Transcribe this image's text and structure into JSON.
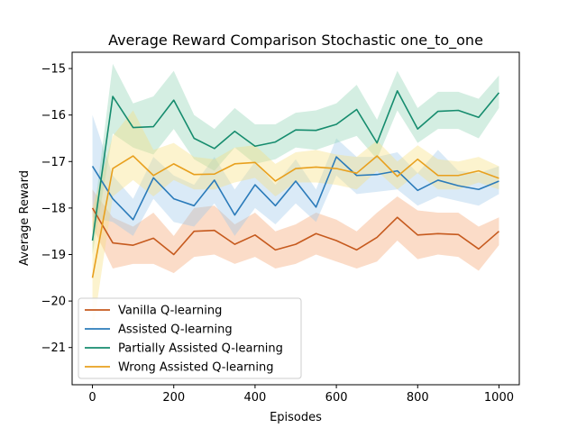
{
  "chart_data": {
    "type": "line",
    "title": "Average Reward Comparison Stochastic one_to_one",
    "xlabel": "Episodes",
    "ylabel": "Average Reward",
    "xlim": [
      -50,
      1050
    ],
    "ylim": [
      -21.8,
      -14.65
    ],
    "xticks": [
      0,
      200,
      400,
      600,
      800,
      1000
    ],
    "yticks": [
      -21,
      -20,
      -19,
      -18,
      -17,
      -16,
      -15
    ],
    "grid": false,
    "legend_position": "lower-left",
    "x": [
      0,
      50,
      100,
      150,
      200,
      250,
      300,
      350,
      400,
      450,
      500,
      550,
      600,
      650,
      700,
      750,
      800,
      850,
      900,
      950,
      1000
    ],
    "series": [
      {
        "name": "Vanilla Q-learning",
        "color": "#c65a1e",
        "band_color": "#f5a26f",
        "values": [
          -18.0,
          -18.75,
          -18.8,
          -18.65,
          -19.0,
          -18.5,
          -18.48,
          -18.78,
          -18.58,
          -18.9,
          -18.78,
          -18.55,
          -18.7,
          -18.9,
          -18.63,
          -18.2,
          -18.58,
          -18.55,
          -18.57,
          -18.88,
          -18.5
        ],
        "lower": [
          -18.4,
          -19.3,
          -19.2,
          -19.2,
          -19.4,
          -19.05,
          -19.0,
          -19.2,
          -19.05,
          -19.3,
          -19.2,
          -19.0,
          -19.15,
          -19.3,
          -19.15,
          -18.7,
          -19.1,
          -19.0,
          -19.05,
          -19.35,
          -18.8
        ],
        "upper": [
          -17.6,
          -18.2,
          -18.4,
          -18.1,
          -18.6,
          -18.0,
          -17.95,
          -18.35,
          -18.1,
          -18.5,
          -18.35,
          -18.1,
          -18.25,
          -18.5,
          -18.1,
          -17.75,
          -18.05,
          -18.1,
          -18.1,
          -18.4,
          -18.2
        ]
      },
      {
        "name": "Assisted Q-learning",
        "color": "#2b7bba",
        "band_color": "#9fc8ea",
        "values": [
          -17.1,
          -17.8,
          -18.25,
          -17.35,
          -17.8,
          -17.95,
          -17.4,
          -18.15,
          -17.5,
          -17.95,
          -17.42,
          -17.98,
          -16.9,
          -17.3,
          -17.28,
          -17.2,
          -17.62,
          -17.4,
          -17.52,
          -17.6,
          -17.42
        ],
        "lower": [
          -18.2,
          -18.3,
          -18.6,
          -17.8,
          -18.3,
          -18.4,
          -17.9,
          -18.6,
          -18.0,
          -18.35,
          -17.9,
          -18.3,
          -17.3,
          -17.7,
          -17.65,
          -17.6,
          -17.95,
          -17.75,
          -17.85,
          -17.95,
          -17.7
        ],
        "upper": [
          -16.0,
          -17.3,
          -17.8,
          -16.9,
          -17.3,
          -17.5,
          -16.9,
          -17.6,
          -17.0,
          -17.5,
          -16.95,
          -17.6,
          -16.5,
          -16.9,
          -16.9,
          -16.8,
          -17.25,
          -16.75,
          -17.2,
          -17.25,
          -17.1
        ]
      },
      {
        "name": "Partially Assisted Q-learning",
        "color": "#168c6e",
        "band_color": "#8fd1b2",
        "values": [
          -18.7,
          -15.6,
          -16.27,
          -16.25,
          -15.68,
          -16.5,
          -16.72,
          -16.35,
          -16.67,
          -16.58,
          -16.32,
          -16.33,
          -16.2,
          -15.88,
          -16.6,
          -15.48,
          -16.3,
          -15.92,
          -15.9,
          -16.05,
          -15.52
        ],
        "lower": [
          -19.0,
          -16.4,
          -16.7,
          -16.85,
          -16.3,
          -16.95,
          -17.2,
          -16.7,
          -17.05,
          -16.95,
          -16.7,
          -16.75,
          -16.6,
          -16.45,
          -16.95,
          -15.9,
          -16.6,
          -16.3,
          -16.3,
          -16.5,
          -15.85
        ],
        "upper": [
          -18.4,
          -14.9,
          -15.75,
          -15.6,
          -15.05,
          -16.0,
          -16.3,
          -15.85,
          -16.2,
          -16.2,
          -15.95,
          -15.9,
          -15.75,
          -15.35,
          -16.1,
          -15.05,
          -15.85,
          -15.5,
          -15.5,
          -15.65,
          -15.15
        ]
      },
      {
        "name": "Wrong Assisted Q-learning",
        "color": "#e8a01e",
        "band_color": "#f7df7e",
        "values": [
          -19.5,
          -17.15,
          -16.88,
          -17.3,
          -17.05,
          -17.28,
          -17.27,
          -17.05,
          -17.02,
          -17.42,
          -17.15,
          -17.12,
          -17.15,
          -17.25,
          -16.88,
          -17.32,
          -16.95,
          -17.3,
          -17.3,
          -17.2,
          -17.36
        ],
        "lower": [
          -20.7,
          -17.75,
          -17.4,
          -17.75,
          -17.4,
          -17.6,
          -17.6,
          -17.45,
          -17.35,
          -17.75,
          -17.45,
          -17.45,
          -17.5,
          -17.6,
          -17.2,
          -17.6,
          -17.25,
          -17.6,
          -17.6,
          -17.45,
          -17.6
        ],
        "upper": [
          -18.0,
          -16.45,
          -15.9,
          -16.75,
          -16.6,
          -16.9,
          -16.95,
          -16.7,
          -16.65,
          -17.05,
          -16.8,
          -16.75,
          -16.85,
          -16.9,
          -16.55,
          -17.0,
          -16.65,
          -16.95,
          -17.0,
          -16.9,
          -17.1
        ]
      }
    ]
  }
}
